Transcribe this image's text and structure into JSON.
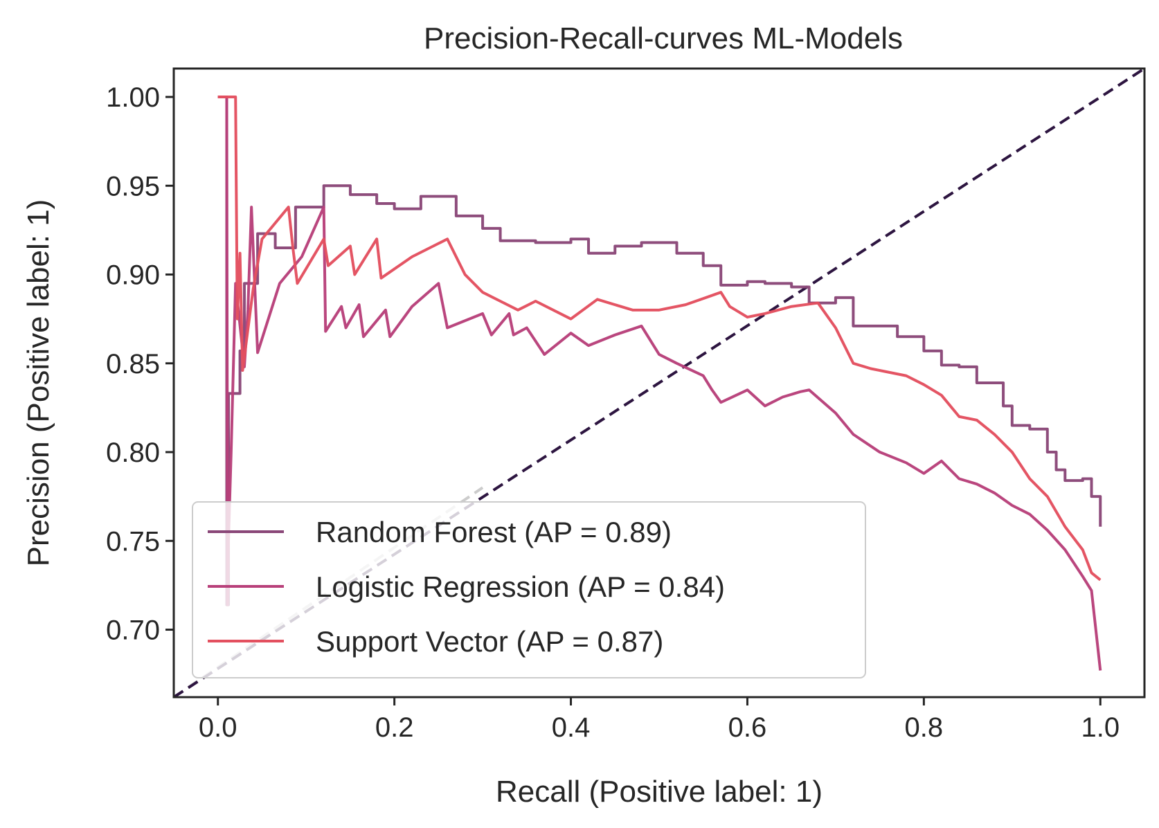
{
  "chart_data": {
    "type": "line",
    "title": "Precision-Recall-curves ML-Models",
    "xlabel": "Recall (Positive label: 1)",
    "ylabel": "Precision (Positive label: 1)",
    "xlim": [
      -0.05,
      1.05
    ],
    "ylim": [
      0.662,
      1.016
    ],
    "xticks": [
      0.0,
      0.2,
      0.4,
      0.6,
      0.8,
      1.0
    ],
    "xtick_labels": [
      "0.0",
      "0.2",
      "0.4",
      "0.6",
      "0.8",
      "1.0"
    ],
    "yticks": [
      0.7,
      0.75,
      0.8,
      0.85,
      0.9,
      0.95,
      1.0
    ],
    "ytick_labels": [
      "0.70",
      "0.75",
      "0.80",
      "0.85",
      "0.90",
      "0.95",
      "1.00"
    ],
    "grid": false,
    "legend_position": "lower-left",
    "legend": [
      {
        "label": "Random Forest (AP = 0.89)",
        "color": "#8a4778"
      },
      {
        "label": "Logistic Regression (AP = 0.84)",
        "color": "#b8407a"
      },
      {
        "label": "Support Vector (AP = 0.87)",
        "color": "#e3505f"
      }
    ],
    "diagonal": {
      "x": [
        -0.05,
        1.05
      ],
      "y": [
        0.662,
        1.016
      ],
      "color": "#2d1540",
      "dash": true
    },
    "chance_line": {
      "x": [
        -0.05,
        0.3
      ],
      "y": [
        0.662,
        0.78
      ],
      "color": "#cccccc",
      "dash": true
    },
    "series": [
      {
        "name": "Random Forest (AP = 0.89)",
        "color": "#8a4778",
        "steps": [
          [
            0.0,
            1.0
          ],
          [
            0.01,
            0.714
          ],
          [
            0.012,
            0.833
          ],
          [
            0.025,
            0.857
          ],
          [
            0.03,
            0.895
          ],
          [
            0.045,
            0.923
          ],
          [
            0.065,
            0.915
          ],
          [
            0.088,
            0.938
          ],
          [
            0.12,
            0.95
          ],
          [
            0.15,
            0.945
          ],
          [
            0.18,
            0.94
          ],
          [
            0.2,
            0.937
          ],
          [
            0.23,
            0.944
          ],
          [
            0.27,
            0.933
          ],
          [
            0.3,
            0.926
          ],
          [
            0.32,
            0.919
          ],
          [
            0.36,
            0.918
          ],
          [
            0.4,
            0.92
          ],
          [
            0.42,
            0.912
          ],
          [
            0.45,
            0.916
          ],
          [
            0.48,
            0.918
          ],
          [
            0.5,
            0.918
          ],
          [
            0.52,
            0.912
          ],
          [
            0.55,
            0.905
          ],
          [
            0.57,
            0.894
          ],
          [
            0.6,
            0.896
          ],
          [
            0.62,
            0.895
          ],
          [
            0.65,
            0.893
          ],
          [
            0.67,
            0.884
          ],
          [
            0.7,
            0.887
          ],
          [
            0.72,
            0.871
          ],
          [
            0.75,
            0.871
          ],
          [
            0.77,
            0.865
          ],
          [
            0.8,
            0.857
          ],
          [
            0.82,
            0.849
          ],
          [
            0.84,
            0.848
          ],
          [
            0.86,
            0.839
          ],
          [
            0.88,
            0.839
          ],
          [
            0.89,
            0.826
          ],
          [
            0.9,
            0.815
          ],
          [
            0.92,
            0.813
          ],
          [
            0.94,
            0.8
          ],
          [
            0.95,
            0.79
          ],
          [
            0.96,
            0.784
          ],
          [
            0.98,
            0.785
          ],
          [
            0.99,
            0.775
          ],
          [
            1.0,
            0.758
          ]
        ]
      },
      {
        "name": "Logistic Regression (AP = 0.84)",
        "color": "#b8407a",
        "points": [
          [
            0.0,
            1.0
          ],
          [
            0.01,
            1.0
          ],
          [
            0.011,
            0.714
          ],
          [
            0.012,
            0.75
          ],
          [
            0.015,
            0.8
          ],
          [
            0.02,
            0.895
          ],
          [
            0.03,
            0.848
          ],
          [
            0.034,
            0.88
          ],
          [
            0.038,
            0.938
          ],
          [
            0.045,
            0.856
          ],
          [
            0.07,
            0.895
          ],
          [
            0.095,
            0.91
          ],
          [
            0.12,
            0.938
          ],
          [
            0.122,
            0.868
          ],
          [
            0.14,
            0.882
          ],
          [
            0.145,
            0.87
          ],
          [
            0.16,
            0.883
          ],
          [
            0.165,
            0.865
          ],
          [
            0.19,
            0.88
          ],
          [
            0.195,
            0.865
          ],
          [
            0.22,
            0.882
          ],
          [
            0.25,
            0.895
          ],
          [
            0.26,
            0.87
          ],
          [
            0.3,
            0.878
          ],
          [
            0.31,
            0.866
          ],
          [
            0.33,
            0.878
          ],
          [
            0.335,
            0.866
          ],
          [
            0.35,
            0.87
          ],
          [
            0.37,
            0.855
          ],
          [
            0.4,
            0.867
          ],
          [
            0.42,
            0.86
          ],
          [
            0.45,
            0.866
          ],
          [
            0.48,
            0.871
          ],
          [
            0.5,
            0.855
          ],
          [
            0.52,
            0.85
          ],
          [
            0.55,
            0.843
          ],
          [
            0.56,
            0.835
          ],
          [
            0.57,
            0.828
          ],
          [
            0.6,
            0.835
          ],
          [
            0.62,
            0.826
          ],
          [
            0.64,
            0.831
          ],
          [
            0.66,
            0.834
          ],
          [
            0.67,
            0.835
          ],
          [
            0.7,
            0.822
          ],
          [
            0.72,
            0.81
          ],
          [
            0.75,
            0.8
          ],
          [
            0.78,
            0.794
          ],
          [
            0.8,
            0.788
          ],
          [
            0.82,
            0.795
          ],
          [
            0.84,
            0.785
          ],
          [
            0.86,
            0.782
          ],
          [
            0.88,
            0.777
          ],
          [
            0.9,
            0.77
          ],
          [
            0.92,
            0.765
          ],
          [
            0.94,
            0.756
          ],
          [
            0.96,
            0.745
          ],
          [
            0.98,
            0.73
          ],
          [
            0.99,
            0.722
          ],
          [
            1.0,
            0.677
          ]
        ]
      },
      {
        "name": "Support Vector (AP = 0.87)",
        "color": "#e3505f",
        "points": [
          [
            0.0,
            1.0
          ],
          [
            0.02,
            1.0
          ],
          [
            0.022,
            0.875
          ],
          [
            0.025,
            0.912
          ],
          [
            0.028,
            0.846
          ],
          [
            0.04,
            0.892
          ],
          [
            0.05,
            0.92
          ],
          [
            0.08,
            0.938
          ],
          [
            0.085,
            0.915
          ],
          [
            0.09,
            0.895
          ],
          [
            0.12,
            0.92
          ],
          [
            0.125,
            0.905
          ],
          [
            0.15,
            0.916
          ],
          [
            0.155,
            0.9
          ],
          [
            0.18,
            0.92
          ],
          [
            0.185,
            0.898
          ],
          [
            0.22,
            0.91
          ],
          [
            0.26,
            0.92
          ],
          [
            0.28,
            0.9
          ],
          [
            0.3,
            0.89
          ],
          [
            0.32,
            0.885
          ],
          [
            0.34,
            0.88
          ],
          [
            0.36,
            0.885
          ],
          [
            0.4,
            0.875
          ],
          [
            0.43,
            0.886
          ],
          [
            0.47,
            0.88
          ],
          [
            0.5,
            0.88
          ],
          [
            0.53,
            0.883
          ],
          [
            0.57,
            0.89
          ],
          [
            0.58,
            0.882
          ],
          [
            0.6,
            0.876
          ],
          [
            0.62,
            0.878
          ],
          [
            0.65,
            0.882
          ],
          [
            0.68,
            0.884
          ],
          [
            0.7,
            0.87
          ],
          [
            0.72,
            0.85
          ],
          [
            0.74,
            0.847
          ],
          [
            0.76,
            0.845
          ],
          [
            0.78,
            0.843
          ],
          [
            0.8,
            0.838
          ],
          [
            0.82,
            0.832
          ],
          [
            0.84,
            0.82
          ],
          [
            0.86,
            0.818
          ],
          [
            0.88,
            0.81
          ],
          [
            0.9,
            0.8
          ],
          [
            0.92,
            0.785
          ],
          [
            0.94,
            0.775
          ],
          [
            0.96,
            0.758
          ],
          [
            0.98,
            0.745
          ],
          [
            0.99,
            0.732
          ],
          [
            1.0,
            0.728
          ]
        ]
      }
    ]
  }
}
